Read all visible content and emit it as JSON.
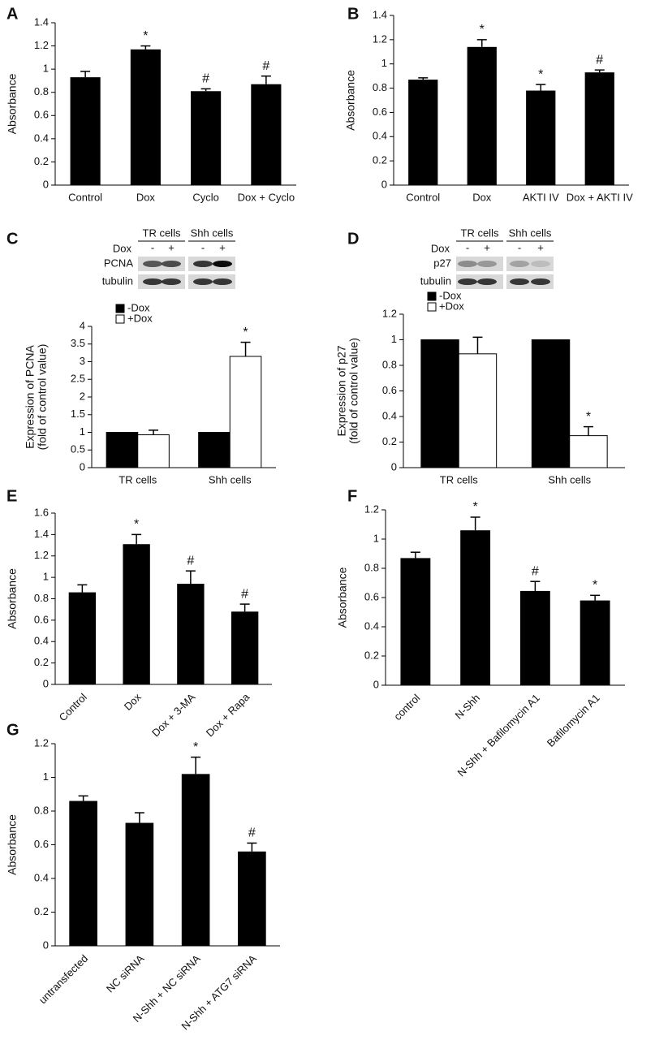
{
  "chart_data": [
    {
      "type": "bar",
      "panel": "A",
      "y_label": [
        "Absorbance"
      ],
      "categories": [
        "Control",
        "Dox",
        "Cyclo",
        "Dox + Cyclo"
      ],
      "values": [
        0.93,
        1.17,
        0.81,
        0.87
      ],
      "errors": [
        0.05,
        0.03,
        0.02,
        0.07
      ],
      "annotations": [
        null,
        "*",
        "#",
        "#"
      ],
      "color": "#000000",
      "ylim": [
        0,
        1.4
      ],
      "yticks": [
        0,
        0.2,
        0.4,
        0.6,
        0.8,
        1,
        1.2,
        1.4
      ]
    },
    {
      "type": "bar",
      "panel": "B",
      "y_label": [
        "Absorbance"
      ],
      "categories": [
        "Control",
        "Dox",
        "AKTI IV",
        "Dox + AKTI IV"
      ],
      "values": [
        0.87,
        1.14,
        0.78,
        0.93
      ],
      "errors": [
        0.015,
        0.06,
        0.05,
        0.02
      ],
      "annotations": [
        null,
        "*",
        "*",
        "#"
      ],
      "color": "#000000",
      "ylim": [
        0,
        1.4
      ],
      "yticks": [
        0,
        0.2,
        0.4,
        0.6,
        0.8,
        1,
        1.2,
        1.4
      ]
    },
    {
      "type": "grouped_bar",
      "panel": "C",
      "y_label": [
        "Expression of PCNA",
        "(fold of control value)"
      ],
      "categories": [
        "TR cells",
        "Shh cells"
      ],
      "series": [
        {
          "name": "-Dox",
          "color": "#000000",
          "values": [
            1,
            1
          ]
        },
        {
          "name": "+Dox",
          "color": "#ffffff",
          "values": [
            0.93,
            3.15
          ],
          "errors": [
            0.13,
            0.4
          ],
          "annotations": [
            null,
            "*"
          ]
        }
      ],
      "ylim": [
        0,
        4
      ],
      "yticks": [
        0,
        0.5,
        1,
        1.5,
        2,
        2.5,
        3,
        3.5,
        4
      ],
      "blot": {
        "groups": [
          "TR cells",
          "Shh cells"
        ],
        "treatment": "Dox",
        "signs": [
          "-",
          "+",
          "-",
          "+"
        ],
        "rows": [
          "PCNA",
          "tubulin"
        ]
      }
    },
    {
      "type": "grouped_bar",
      "panel": "D",
      "y_label": [
        "Expression of p27",
        "(fold of control value)"
      ],
      "categories": [
        "TR cells",
        "Shh cells"
      ],
      "series": [
        {
          "name": "-Dox",
          "color": "#000000",
          "values": [
            1,
            1
          ]
        },
        {
          "name": "+Dox",
          "color": "#ffffff",
          "values": [
            0.89,
            0.25
          ],
          "errors": [
            0.13,
            0.07
          ],
          "annotations": [
            null,
            "*"
          ]
        }
      ],
      "ylim": [
        0,
        1.2
      ],
      "yticks": [
        0,
        0.2,
        0.4,
        0.6,
        0.8,
        1,
        1.2
      ],
      "blot": {
        "groups": [
          "TR cells",
          "Shh cells"
        ],
        "treatment": "Dox",
        "signs": [
          "-",
          "+",
          "-",
          "+"
        ],
        "rows": [
          "p27",
          "tubulin"
        ]
      }
    },
    {
      "type": "bar",
      "panel": "E",
      "y_label": [
        "Absorbance"
      ],
      "categories": [
        "Control",
        "Dox",
        "Dox + 3-MA",
        "Dox + Rapa"
      ],
      "values": [
        0.86,
        1.31,
        0.94,
        0.68
      ],
      "errors": [
        0.07,
        0.09,
        0.12,
        0.07
      ],
      "annotations": [
        null,
        "*",
        "#",
        "#"
      ],
      "color": "#000000",
      "ylim": [
        0,
        1.6
      ],
      "yticks": [
        0,
        0.2,
        0.4,
        0.6,
        0.8,
        1,
        1.2,
        1.4,
        1.6
      ],
      "rotate_labels": true
    },
    {
      "type": "bar",
      "panel": "F",
      "y_label": [
        "Absorbance"
      ],
      "categories": [
        "control",
        "N-Shh",
        "N-Shh + Bafilomycin A1",
        "Bafilomycin A1"
      ],
      "values": [
        0.87,
        1.06,
        0.645,
        0.58
      ],
      "errors": [
        0.04,
        0.09,
        0.065,
        0.035
      ],
      "annotations": [
        null,
        "*",
        "#",
        "*"
      ],
      "color": "#000000",
      "ylim": [
        0,
        1.2
      ],
      "yticks": [
        0,
        0.2,
        0.4,
        0.6,
        0.8,
        1,
        1.2
      ],
      "rotate_labels": true
    },
    {
      "type": "bar",
      "panel": "G",
      "y_label": [
        "Absorbance"
      ],
      "categories": [
        "untransfected",
        "NC siRNA",
        "N-Shh + NC siRNA",
        "N-Shh + ATG7 siRNA"
      ],
      "values": [
        0.86,
        0.73,
        1.02,
        0.56
      ],
      "errors": [
        0.03,
        0.06,
        0.1,
        0.05
      ],
      "annotations": [
        null,
        null,
        "*",
        "#"
      ],
      "color": "#000000",
      "ylim": [
        0,
        1.2
      ],
      "yticks": [
        0,
        0.2,
        0.4,
        0.6,
        0.8,
        1,
        1.2
      ],
      "rotate_labels": true
    }
  ]
}
